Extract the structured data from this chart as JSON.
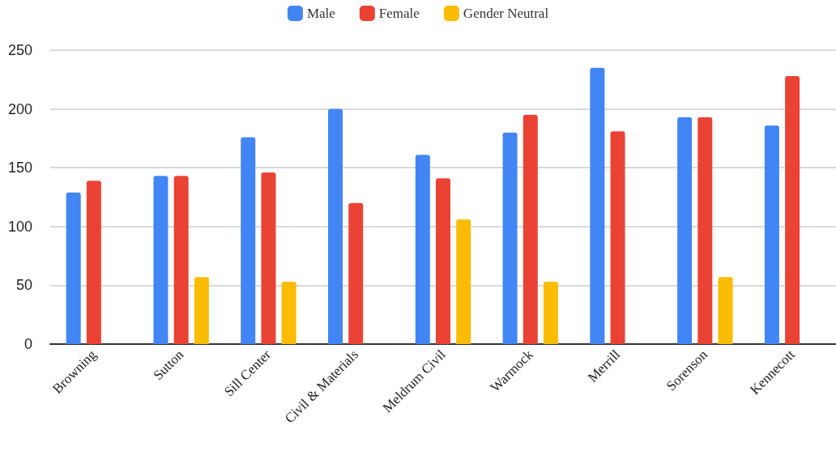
{
  "chart_data": {
    "type": "bar",
    "categories": [
      "Browning",
      "Sutton",
      "Sill Center",
      "Civil & Materials",
      "Meldrum Civil",
      "Warmock",
      "Merrill",
      "Sorenson",
      "Kennecott"
    ],
    "series": [
      {
        "name": "Male",
        "color": "#4285f4",
        "values": [
          129,
          143,
          176,
          200,
          161,
          180,
          235,
          193,
          186
        ]
      },
      {
        "name": "Female",
        "color": "#ea4335",
        "values": [
          139,
          143,
          146,
          120,
          141,
          195,
          181,
          193,
          228
        ]
      },
      {
        "name": "Gender Neutral",
        "color": "#fbbc04",
        "values": [
          null,
          57,
          53,
          null,
          106,
          53,
          null,
          57,
          null
        ]
      }
    ],
    "ylim": [
      0,
      250
    ],
    "yticks": [
      0,
      50,
      100,
      150,
      200,
      250
    ],
    "grid": "y",
    "legend": "top"
  }
}
